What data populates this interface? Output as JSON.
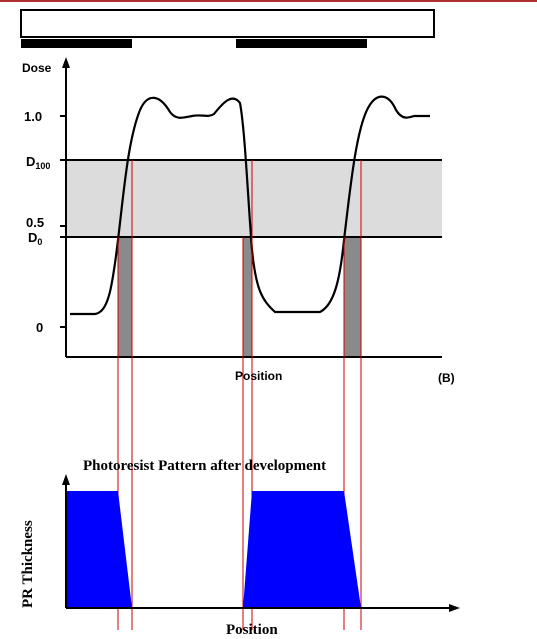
{
  "colors": {
    "line": "#000000",
    "band": "#dcdcdc",
    "exposed": "#8a8a8a",
    "guide": "#cc0000",
    "resist": "#0000ff",
    "top_rule": "#b03030"
  },
  "dose_plot": {
    "y_axis_label": "Dose",
    "x_axis_label": "Position",
    "panel_label": "(B)",
    "ticks": {
      "one": "1.0",
      "d100_main": "D",
      "d100_sub": "100",
      "half": "0.5",
      "d0_main": "D",
      "d0_sub": "0",
      "zero": "0"
    },
    "levels": {
      "zero": 0.0,
      "d0": 0.43,
      "half": 0.5,
      "d100": 0.8,
      "one": 1.0
    }
  },
  "resist_plot": {
    "title": "Photoresist Pattern after development",
    "y_axis_label": "PR Thickness",
    "x_axis_label": "Position"
  },
  "mask": {
    "opaque_segments": 2
  }
}
